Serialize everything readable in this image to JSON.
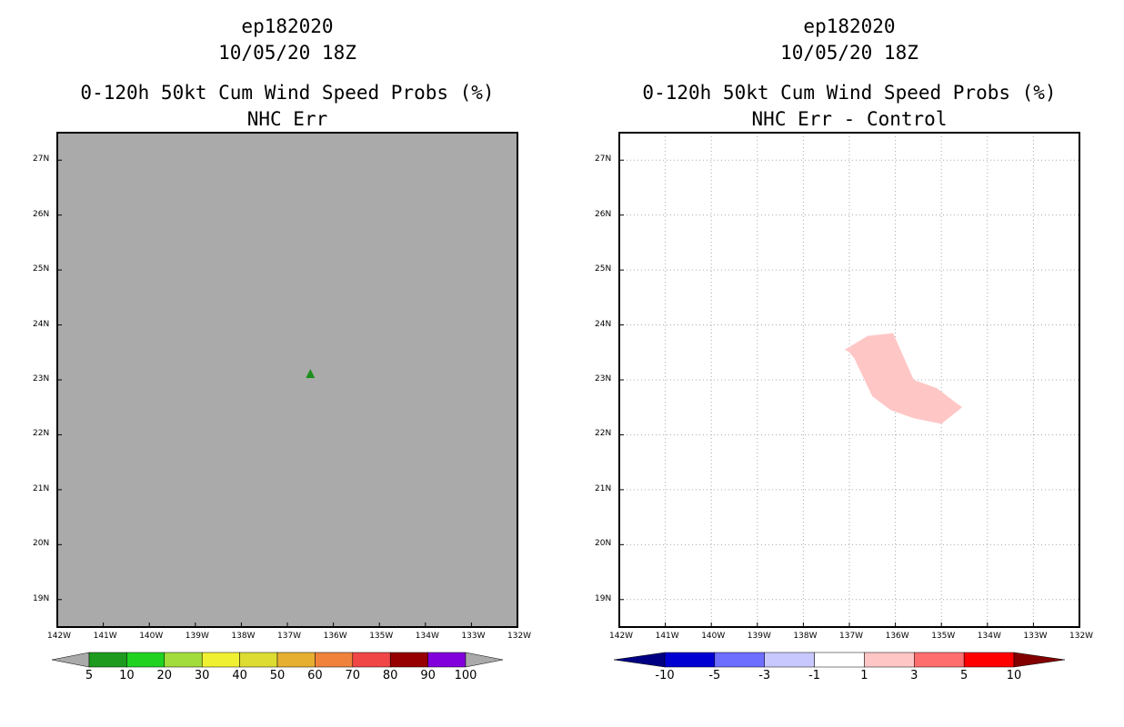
{
  "chart_data": [
    {
      "type": "heatmap",
      "title_lines": [
        "ep182020",
        "10/05/20 18Z",
        "0-120h 50kt Cum Wind Speed Probs (%)",
        "NHC Err"
      ],
      "x_ticks": [
        "142W",
        "141W",
        "140W",
        "139W",
        "138W",
        "137W",
        "136W",
        "135W",
        "134W",
        "133W",
        "132W"
      ],
      "y_ticks": [
        "19N",
        "20N",
        "21N",
        "22N",
        "23N",
        "24N",
        "25N",
        "26N",
        "27N"
      ],
      "xlim": [
        -142,
        -132
      ],
      "ylim": [
        18.5,
        27.5
      ],
      "background_color": "#aaaaaa",
      "grid": false,
      "markers": [
        {
          "name": "storm-marker",
          "lon": -136.5,
          "lat": 23.1,
          "color": "#1e8f1e"
        }
      ],
      "colorbar": {
        "levels": [
          "5",
          "10",
          "20",
          "30",
          "40",
          "50",
          "60",
          "70",
          "80",
          "90",
          "100"
        ],
        "colors": [
          "#1e9b1e",
          "#21d221",
          "#a2dc3c",
          "#f0f032",
          "#dcdc32",
          "#e6af32",
          "#f0823c",
          "#f04646",
          "#960000",
          "#8200dc"
        ],
        "under_color": "#aaaaaa",
        "over_color": "#aaaaaa"
      }
    },
    {
      "type": "heatmap",
      "title_lines": [
        "ep182020",
        "10/05/20 18Z",
        "0-120h 50kt Cum Wind Speed Probs (%)",
        "NHC Err - Control"
      ],
      "x_ticks": [
        "142W",
        "141W",
        "140W",
        "139W",
        "138W",
        "137W",
        "136W",
        "135W",
        "134W",
        "133W",
        "132W"
      ],
      "y_ticks": [
        "19N",
        "20N",
        "21N",
        "22N",
        "23N",
        "24N",
        "25N",
        "26N",
        "27N"
      ],
      "xlim": [
        -142,
        -132
      ],
      "ylim": [
        18.5,
        27.5
      ],
      "background_color": "#ffffff",
      "grid": true,
      "regions": [
        {
          "name": "diff-region-1-to-3",
          "color": "#ffc6c6",
          "points": [
            [
              -137.1,
              23.55
            ],
            [
              -136.6,
              23.8
            ],
            [
              -136.05,
              23.85
            ],
            [
              -135.6,
              23.0
            ],
            [
              -135.1,
              22.85
            ],
            [
              -134.55,
              22.5
            ],
            [
              -135.0,
              22.2
            ],
            [
              -135.6,
              22.3
            ],
            [
              -136.1,
              22.45
            ],
            [
              -136.5,
              22.7
            ],
            [
              -136.9,
              23.4
            ],
            [
              -137.0,
              23.5
            ]
          ]
        }
      ],
      "colorbar": {
        "levels": [
          "-10",
          "-5",
          "-3",
          "-1",
          "1",
          "3",
          "5",
          "10"
        ],
        "colors": [
          "#0000d2",
          "#6e6eff",
          "#c8c8ff",
          "#ffffff",
          "#ffc6c6",
          "#ff6e6e",
          "#ff0000"
        ],
        "under_color": "#000082",
        "over_color": "#820000"
      }
    }
  ]
}
